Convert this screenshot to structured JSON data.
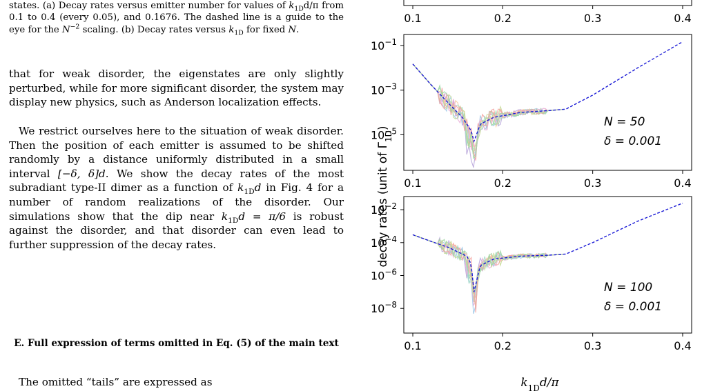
{
  "text": {
    "caption": {
      "p1": "states. (a) Decay rates versus emitter number for values of ",
      "k": "k",
      "sub1D": "1D",
      "p2": "d/π from 0.1 to 0.4 (every 0.05), and 0.1676. The dashed line is a guide to the eye for the ",
      "nm2_base": "N",
      "nm2_exp": "−2",
      "p3": " scaling. (b) Decay rates versus ",
      "p4": " for fixed ",
      "N": "N",
      "p5": "."
    },
    "para1": "that for weak disorder, the eigenstates are only slightly perturbed, while for more significant disorder, the system may display new physics, such as Anderson localization effects.",
    "para2": {
      "a": "We restrict ourselves here to the situation of weak disorder. Then the position of each emitter is assumed to be shifted randomly by a distance uniformly distributed in a small interval ",
      "interval": "[−δ, δ]d",
      "b": ". We show the decay rates of the most subradiant type-II dimer as a function of ",
      "kd": "k",
      "sub": "1D",
      "kd_d": "d",
      "c": " in Fig. 4 for a number of random realizations of the disorder. Our simulations show that the dip near ",
      "eq": "d = π/6",
      "d": " is robust against the disorder, and that disorder can even lead to further suppression of the decay rates."
    },
    "heading": "E. Full expression of terms omitted in Eq. (5) of the main text",
    "tail": "The omitted “tails” are expressed as"
  },
  "figure": {
    "ylabel": "decay rates  (unit of Γ",
    "ylabel_sub": "1D",
    "ylabel_close": ")",
    "xlabel_k": "k",
    "xlabel_sub": "1D",
    "xlabel_rest": "d/π",
    "xticks": [
      "0.1",
      "0.2",
      "0.3",
      "0.4"
    ]
  },
  "chart_data": [
    {
      "type": "line",
      "panel": "top-partial",
      "x_ticks": [
        "0.1",
        "0.2",
        "0.3",
        "0.4"
      ],
      "xlim": [
        0.1,
        0.4
      ]
    },
    {
      "type": "line",
      "panel": "middle",
      "annotation": [
        "N = 50",
        "δ = 0.001"
      ],
      "yscale": "log",
      "y_ticks": [
        "10^-1",
        "10^-3",
        "10^-5"
      ],
      "x_ticks": [
        "0.1",
        "0.2",
        "0.3",
        "0.4"
      ],
      "xlim": [
        0.1,
        0.4
      ],
      "series": [
        {
          "style": "dashed-blue",
          "x": [
            0.1,
            0.12,
            0.14,
            0.155,
            0.16,
            0.165,
            0.168,
            0.175,
            0.19,
            0.22,
            0.25,
            0.27,
            0.3,
            0.35,
            0.4
          ],
          "y": [
            0.015,
            0.0018,
            0.00025,
            6e-05,
            3e-05,
            1.5e-05,
            5e-06,
            3e-05,
            6e-05,
            0.0001,
            0.00012,
            0.00014,
            0.0006,
            0.01,
            0.15
          ]
        }
      ]
    },
    {
      "type": "line",
      "panel": "bottom",
      "annotation": [
        "N = 100",
        "δ = 0.001"
      ],
      "yscale": "log",
      "y_ticks": [
        "10^-2",
        "10^-4",
        "10^-6",
        "10^-8"
      ],
      "x_ticks": [
        "0.1",
        "0.2",
        "0.3",
        "0.4"
      ],
      "xlim": [
        0.1,
        0.4
      ],
      "series": [
        {
          "style": "dashed-blue",
          "x": [
            0.1,
            0.12,
            0.14,
            0.16,
            0.165,
            0.168,
            0.175,
            0.19,
            0.22,
            0.25,
            0.27,
            0.3,
            0.35,
            0.4
          ],
          "y": [
            0.0003,
            0.00012,
            5e-05,
            1.5e-05,
            5e-06,
            1e-07,
            4e-06,
            1e-05,
            1.5e-05,
            1.7e-05,
            2e-05,
            0.0001,
            0.002,
            0.025
          ]
        }
      ]
    }
  ]
}
